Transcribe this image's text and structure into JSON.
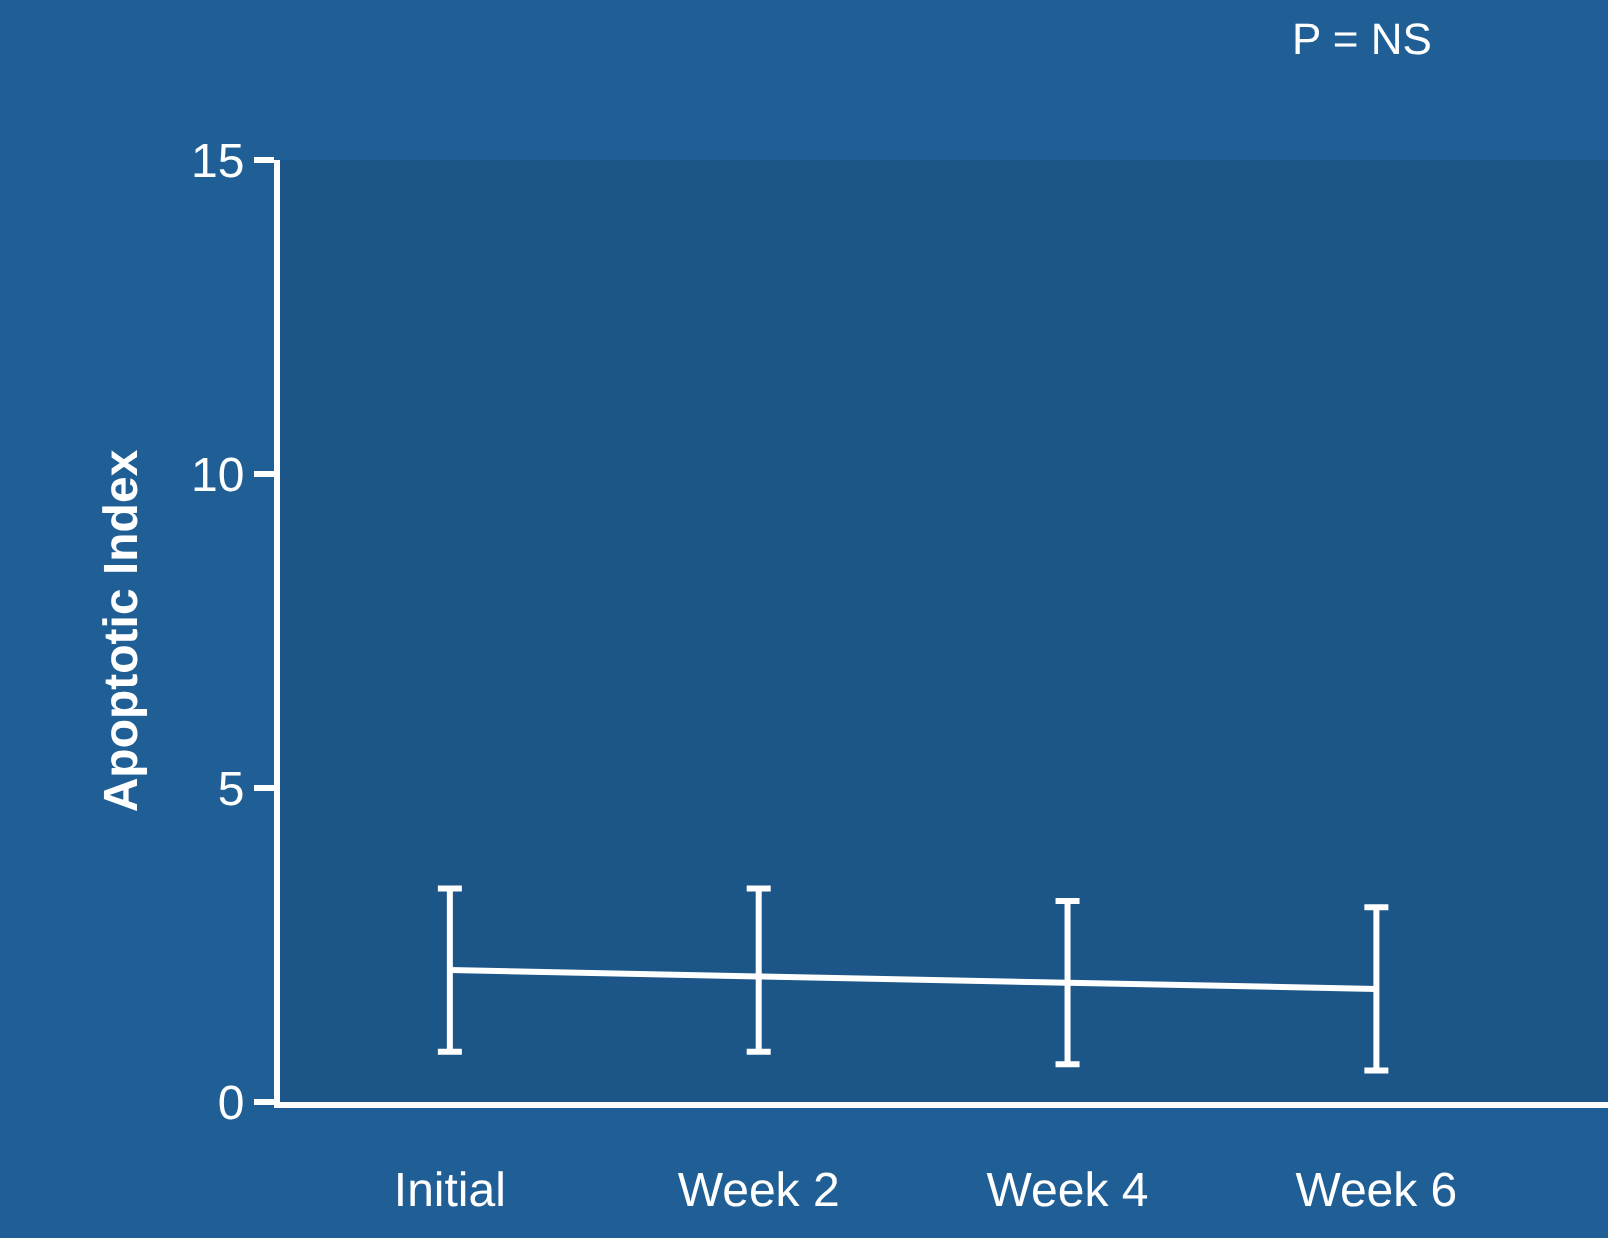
{
  "chart_data": {
    "type": "line",
    "ylabel": "Apoptotic Index",
    "annotations": [
      "P = NS"
    ],
    "categories": [
      "Initial",
      "Week 2",
      "Week 4",
      "Week 6"
    ],
    "values": [
      2.1,
      2.0,
      1.9,
      1.8
    ],
    "errors": [
      [
        0.8,
        3.4
      ],
      [
        0.8,
        3.4
      ],
      [
        0.6,
        3.2
      ],
      [
        0.5,
        3.1
      ]
    ],
    "color": "#ffffff",
    "marker": "none",
    "line_style": "solid",
    "ylim": [
      0,
      15
    ],
    "yticks": [
      0,
      5,
      10,
      15
    ]
  }
}
